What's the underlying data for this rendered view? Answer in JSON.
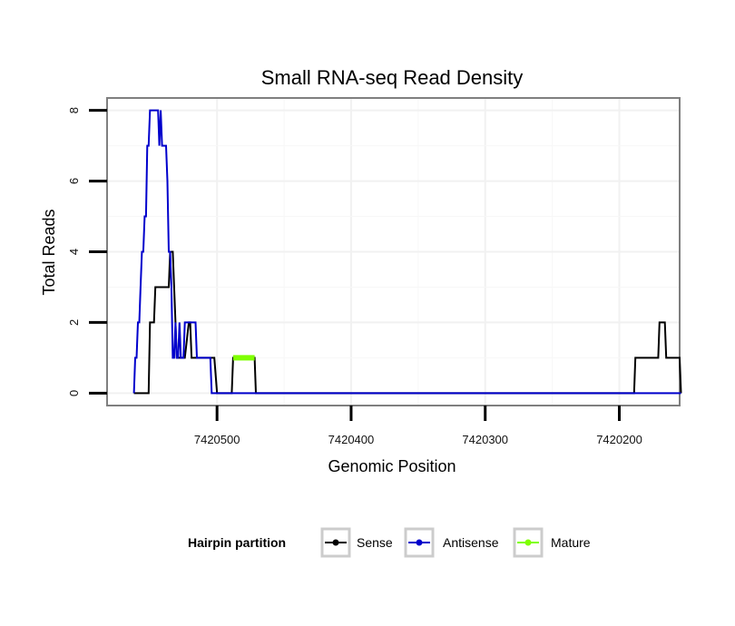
{
  "chart_data": {
    "type": "line",
    "title": "Small RNA-seq Read Density",
    "xlabel": "Genomic Position",
    "ylabel": "Total Reads",
    "x_reversed": true,
    "xlim": [
      7420582,
      7420155
    ],
    "ylim": [
      -0.35,
      8.35
    ],
    "x_ticks": [
      7420500,
      7420400,
      7420300,
      7420200
    ],
    "x_tick_labels": [
      "7420500",
      "7420400",
      "7420300",
      "7420200"
    ],
    "y_ticks": [
      0,
      2,
      4,
      6,
      8
    ],
    "y_tick_labels": [
      "0",
      "2",
      "4",
      "6",
      "8"
    ],
    "grid": true,
    "legend": {
      "title": "Hairpin partition",
      "position": "bottom",
      "entries": [
        "Sense",
        "Antisense",
        "Mature"
      ]
    },
    "series": [
      {
        "name": "Sense",
        "color": "#000000",
        "x": [
          7420562,
          7420551,
          7420550,
          7420547,
          7420546,
          7420536,
          7420535,
          7420533,
          7420531,
          7420530,
          7420526,
          7420524,
          7420521,
          7420520,
          7420519,
          7420518,
          7420502,
          7420500,
          7420499,
          7420489,
          7420488,
          7420472,
          7420471,
          7420392,
          7420300,
          7420200,
          7420189,
          7420188,
          7420171,
          7420170,
          7420167,
          7420166,
          7420165,
          7420164,
          7420155,
          7420154
        ],
        "y": [
          0,
          0,
          2,
          2,
          3,
          3,
          4,
          4,
          2,
          1,
          1,
          1,
          2,
          2,
          1,
          1,
          1,
          0,
          0,
          0,
          1,
          1,
          0,
          0,
          0,
          0,
          0,
          1,
          1,
          2,
          2,
          2,
          1,
          1,
          1,
          0
        ]
      },
      {
        "name": "Antisense",
        "color": "#0000cc",
        "x": [
          7420562,
          7420561,
          7420560,
          7420559,
          7420558,
          7420557,
          7420556,
          7420555,
          7420554,
          7420553,
          7420552,
          7420551,
          7420550,
          7420549,
          7420548,
          7420547,
          7420546,
          7420545,
          7420544,
          7420543,
          7420542,
          7420541,
          7420540,
          7420539,
          7420538,
          7420537,
          7420536,
          7420535,
          7420534,
          7420533,
          7420532,
          7420531,
          7420530,
          7420529,
          7420528,
          7420527,
          7420526,
          7420525,
          7420524,
          7420523,
          7420522,
          7420521,
          7420520,
          7420519,
          7420518,
          7420517,
          7420516,
          7420515,
          7420514,
          7420513,
          7420512,
          7420511,
          7420510,
          7420509,
          7420508,
          7420507,
          7420506,
          7420505,
          7420504,
          7420503,
          7420502,
          7420501,
          7420500,
          7420450,
          7420400,
          7420300,
          7420200,
          7420154
        ],
        "y": [
          0,
          1,
          1,
          2,
          2,
          3,
          4,
          4,
          5,
          5,
          7,
          7,
          8,
          8,
          8,
          8,
          8,
          8,
          8,
          7,
          8,
          7,
          7,
          7,
          7,
          6,
          4,
          4,
          3,
          1,
          1,
          2,
          1,
          1,
          2,
          1,
          1,
          1,
          2,
          2,
          2,
          2,
          2,
          2,
          2,
          2,
          2,
          1,
          1,
          1,
          1,
          1,
          1,
          1,
          1,
          1,
          1,
          1,
          0,
          0,
          0,
          0,
          0,
          0,
          0,
          0,
          0,
          0
        ]
      },
      {
        "name": "Mature",
        "color": "#7fff00",
        "x": [
          7420488,
          7420472
        ],
        "y": [
          1,
          1
        ]
      }
    ]
  }
}
